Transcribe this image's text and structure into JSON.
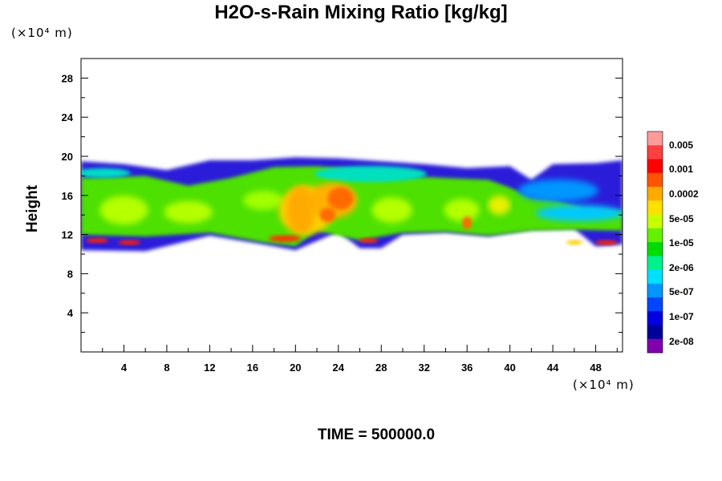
{
  "title": "H2O-s-Rain Mixing Ratio [kg/kg]",
  "unit_top": "(×10⁴ m)",
  "unit_bottom": "(×10⁴ m)",
  "time_label": "TIME = 500000.0",
  "chart_data": {
    "type": "heatmap",
    "title": "H2O-s-Rain Mixing Ratio [kg/kg]",
    "ylabel": "Height",
    "xlabel": "",
    "x_unit": "(×10⁴ m)",
    "y_unit": "(×10⁴ m)",
    "xlim": [
      0,
      50.5
    ],
    "ylim": [
      0,
      30
    ],
    "x_ticks": [
      4,
      8,
      12,
      16,
      20,
      24,
      28,
      32,
      36,
      40,
      44,
      48
    ],
    "y_ticks": [
      4,
      8,
      12,
      16,
      20,
      24,
      28
    ],
    "colorbar": {
      "levels": [
        "0.005",
        "0.001",
        "0.0002",
        "5e-05",
        "1e-05",
        "2e-06",
        "5e-07",
        "1e-07",
        "2e-08"
      ],
      "colors": [
        "#ff9a9a",
        "#ff4040",
        "#ff0000",
        "#ff5500",
        "#ffaa00",
        "#ffe000",
        "#c8ff00",
        "#64f000",
        "#00dc00",
        "#00f08c",
        "#00e0ff",
        "#0096ff",
        "#0046ff",
        "#0000e0",
        "#00009a",
        "#8000b0"
      ]
    },
    "field_description_layer": "cloud band between ~10 and ~20 (x10^4 m) height across full domain",
    "time": "500000.0"
  }
}
